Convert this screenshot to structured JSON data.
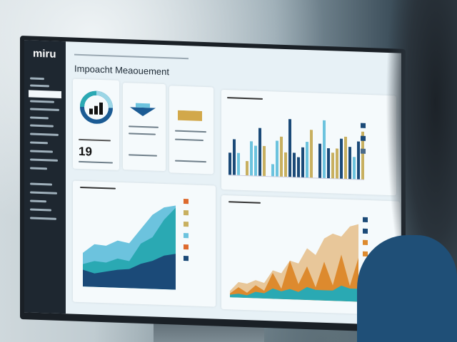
{
  "app": {
    "logo": "miru",
    "page_title": "Impoacht Meaouement"
  },
  "kpi": {
    "value": "19"
  },
  "colors": {
    "navy": "#1b4a78",
    "teal": "#2aa9b3",
    "light_blue": "#6cc3de",
    "gold": "#c8b060",
    "orange": "#dd8a2e",
    "tan": "#e8c79a",
    "sidebar": "#1e2730"
  },
  "icons": [
    "donut-bar-chart-icon",
    "stack-tray-icon",
    "banner-icon"
  ],
  "chart_data": [
    {
      "type": "bar",
      "values": [
        22,
        36,
        22,
        0,
        14,
        34,
        30,
        48,
        30,
        0,
        12,
        36,
        40,
        24,
        58,
        24,
        20,
        30,
        36,
        48,
        0,
        34,
        58,
        30,
        26,
        30,
        40,
        42,
        32,
        22,
        38,
        48
      ],
      "colors": [
        "navy",
        "navy",
        "light_blue",
        "",
        "gold",
        "light_blue",
        "light_blue",
        "navy",
        "gold",
        "",
        "light_blue",
        "light_blue",
        "gold",
        "gold",
        "navy",
        "navy",
        "navy",
        "navy",
        "light_blue",
        "gold",
        "",
        "navy",
        "light_blue",
        "navy",
        "gold",
        "gold",
        "navy",
        "gold",
        "navy",
        "light_blue",
        "navy",
        "gold"
      ]
    },
    {
      "type": "area",
      "series": [
        {
          "values": [
            30,
            38,
            37,
            42,
            40,
            53,
            66,
            73,
            75
          ]
        },
        {
          "values": [
            20,
            23,
            22,
            26,
            24,
            40,
            46,
            62,
            73
          ]
        },
        {
          "values": [
            15,
            12,
            14,
            16,
            17,
            22,
            25,
            30,
            32
          ]
        }
      ]
    },
    {
      "type": "area",
      "series": [
        {
          "values": [
            5,
            12,
            11,
            14,
            12,
            22,
            20,
            30,
            28,
            40,
            35,
            48,
            52,
            50,
            58,
            60
          ]
        },
        {
          "values": [
            3,
            8,
            4,
            10,
            6,
            20,
            8,
            30,
            12,
            26,
            10,
            30,
            12,
            36,
            12,
            34
          ]
        },
        {
          "values": [
            2,
            3,
            2,
            5,
            4,
            8,
            6,
            8,
            6,
            10,
            8,
            8,
            8,
            12,
            10,
            10
          ]
        }
      ]
    }
  ]
}
